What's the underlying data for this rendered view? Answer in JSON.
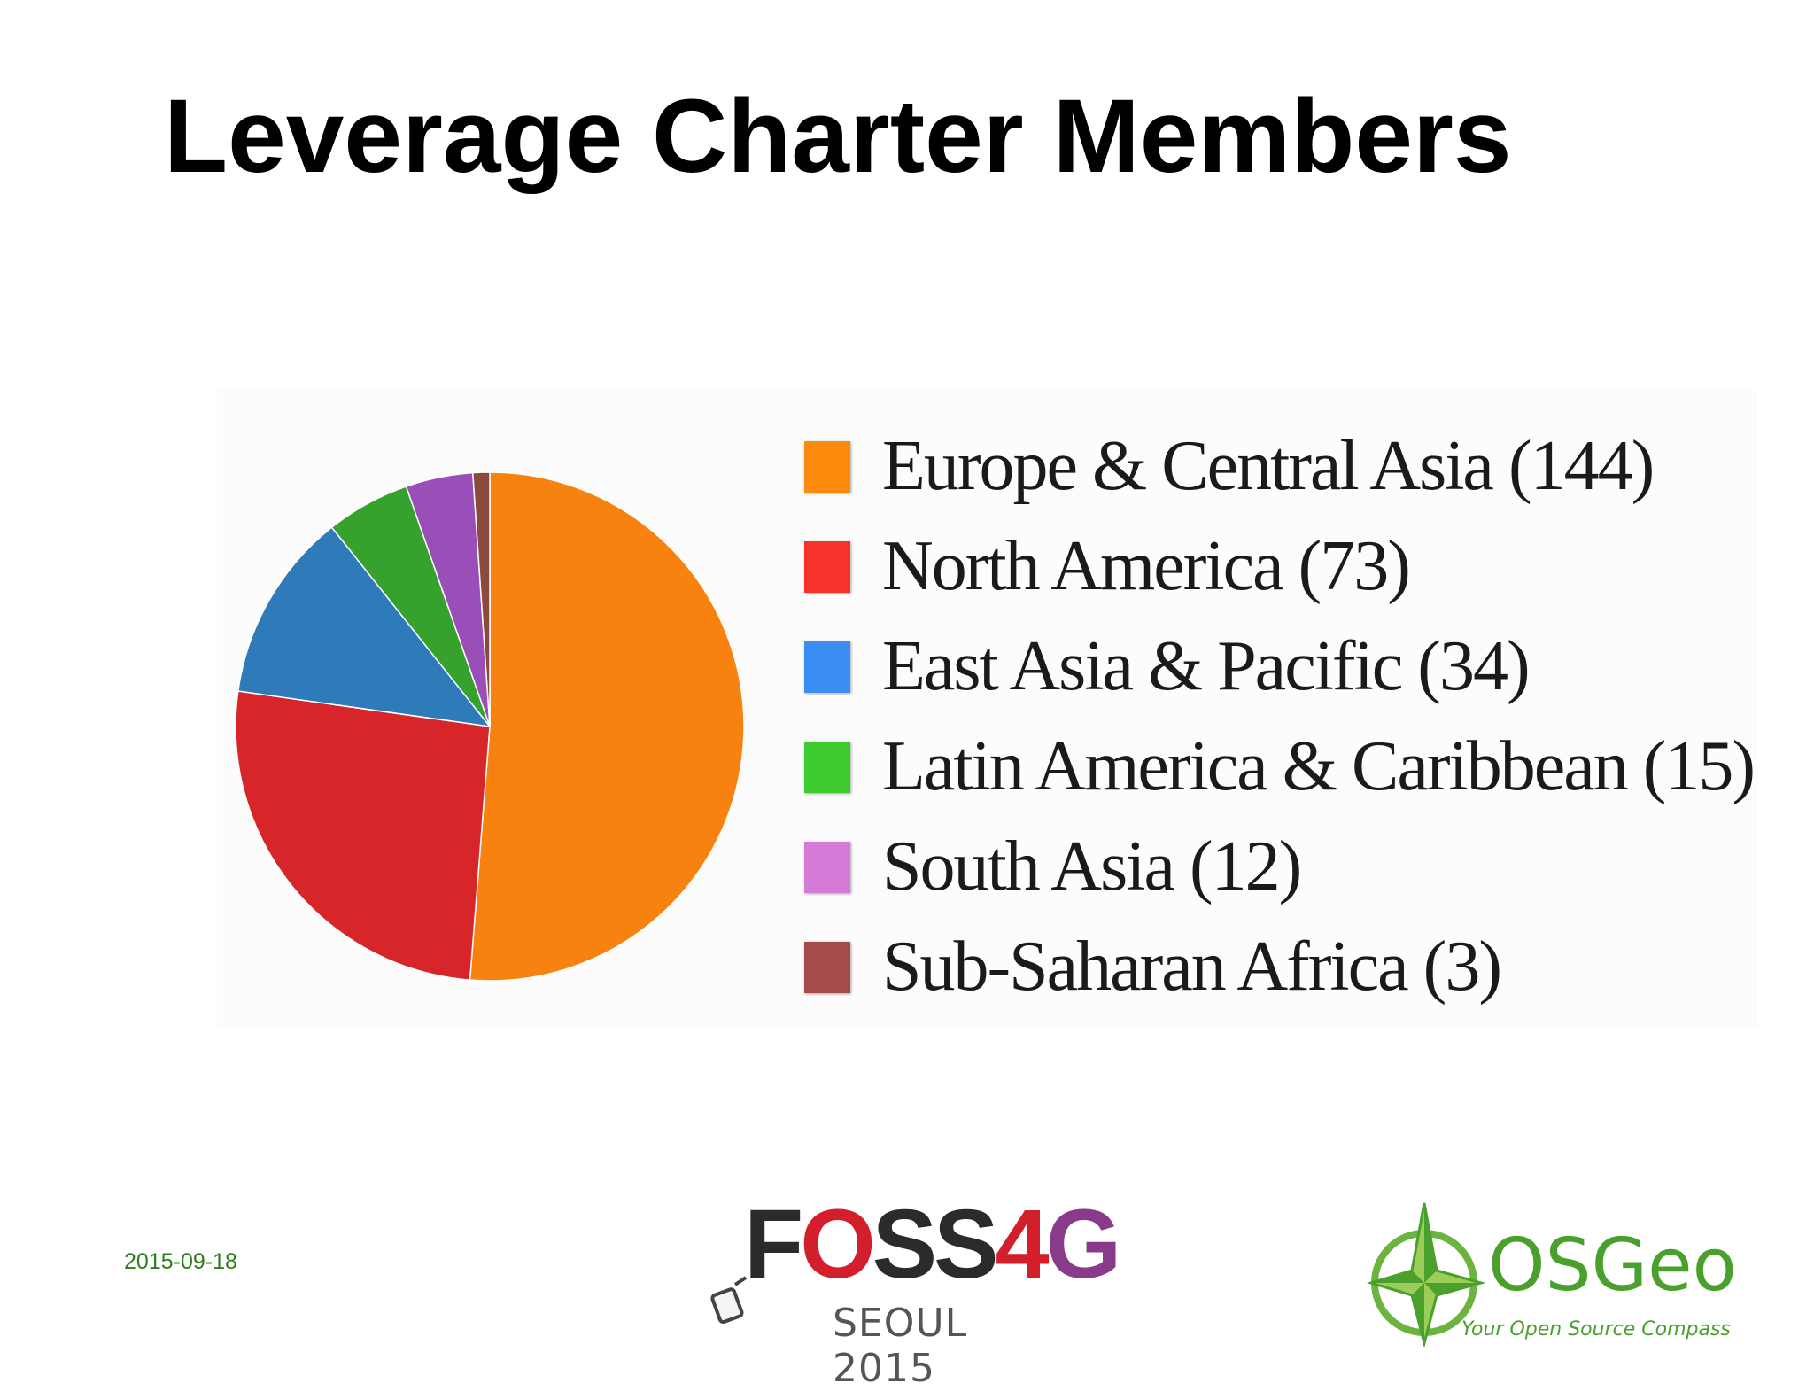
{
  "slide": {
    "title": "Leverage Charter Members",
    "date": "2015-09-18"
  },
  "chart_data": {
    "type": "pie",
    "categories": [
      "Europe & Central Asia",
      "North America",
      "East Asia & Pacific",
      "Latin America & Caribbean",
      "South Asia",
      "Sub-Saharan Africa"
    ],
    "values": [
      144,
      73,
      34,
      15,
      12,
      3
    ],
    "legend_labels": [
      "Europe & Central Asia (144)",
      "North America (73)",
      "East Asia & Pacific (34)",
      "Latin America & Caribbean (15)",
      "South Asia (12)",
      "Sub-Saharan Africa (3)"
    ],
    "slice_colors": [
      "#f7820f",
      "#d6262a",
      "#2f7ab8",
      "#36a12c",
      "#9a4fb8",
      "#8b4a3e"
    ],
    "legend_colors": [
      "#fc8a0c",
      "#f5322c",
      "#3b8ff4",
      "#3ccc30",
      "#d57ad6",
      "#a64b4a"
    ],
    "legend_position": "right",
    "start": "12 o'clock, clockwise"
  },
  "logos": {
    "foss4g": {
      "word_f": "F",
      "word_o": "O",
      "word_ss": "SS",
      "word_4": "4",
      "word_g": "G",
      "subtitle": "SEOUL 2015",
      "colors": {
        "dark": "#2b2b2b",
        "red": "#d21f2b",
        "purple": "#8a3a8a"
      }
    },
    "osgeo": {
      "name": "OSGeo",
      "tagline": "Your Open Source Compass",
      "color": "#4aa02c",
      "icon": "compass-star-icon"
    }
  }
}
